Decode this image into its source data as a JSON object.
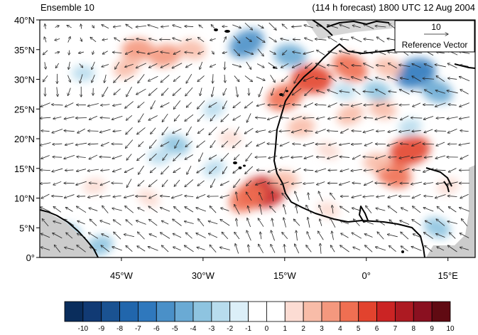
{
  "title_left": "Ensemble 10",
  "title_right": "(114 h forecast) 1800 UTC 12 Aug 2004",
  "reference_vector": {
    "value": "10",
    "label": "Reference Vector"
  },
  "map": {
    "lon_range": [
      -60,
      20
    ],
    "lat_range": [
      0,
      40
    ],
    "lat_tick_labels": [
      {
        "lat": 0,
        "label": "0°"
      },
      {
        "lat": 5,
        "label": "5°N"
      },
      {
        "lat": 10,
        "label": "10°N"
      },
      {
        "lat": 15,
        "label": "15°N"
      },
      {
        "lat": 20,
        "label": "20°N"
      },
      {
        "lat": 25,
        "label": "25°N"
      },
      {
        "lat": 30,
        "label": "30°N"
      },
      {
        "lat": 35,
        "label": "35°N"
      },
      {
        "lat": 40,
        "label": "40°N"
      }
    ],
    "lon_tick_labels": [
      {
        "lon": -45,
        "label": "45°W"
      },
      {
        "lon": -30,
        "label": "30°W"
      },
      {
        "lon": -15,
        "label": "15°W"
      },
      {
        "lon": 0,
        "label": "0°"
      },
      {
        "lon": 15,
        "label": "15°E"
      }
    ],
    "colors": {
      "land_missing": "#cccccc",
      "coastline": "#000000",
      "vector": "#222222"
    }
  },
  "colorbar": {
    "labels": [
      "-10",
      "-9",
      "-8",
      "-7",
      "-6",
      "-5",
      "-4",
      "-3",
      "-2",
      "-1",
      "0",
      "1",
      "2",
      "3",
      "4",
      "5",
      "6",
      "7",
      "8",
      "9",
      "10"
    ],
    "colors": [
      "#0a2d5c",
      "#113a74",
      "#1a5291",
      "#2166ac",
      "#2f78bd",
      "#4a90c8",
      "#6aaad4",
      "#8ec4e0",
      "#b8dced",
      "#dceff8",
      "#ffffff",
      "#ffffff",
      "#fcdcd3",
      "#f8bca8",
      "#f4987e",
      "#ef6f52",
      "#e2432e",
      "#cb2424",
      "#ad1a22",
      "#8a1020",
      "#600a12"
    ]
  },
  "anomaly_field": {
    "units": "",
    "blobs": [
      {
        "lon": -22,
        "lat": 36,
        "value": -5
      },
      {
        "lon": -14,
        "lat": 34,
        "value": -4
      },
      {
        "lon": 9,
        "lat": 31,
        "value": -6
      },
      {
        "lon": 13,
        "lat": 28,
        "value": -4
      },
      {
        "lon": -42,
        "lat": 35,
        "value": 4
      },
      {
        "lon": -44,
        "lat": 32,
        "value": 3
      },
      {
        "lon": -32,
        "lat": 35,
        "value": 3
      },
      {
        "lon": -37,
        "lat": 34,
        "value": 4
      },
      {
        "lon": -3,
        "lat": 32,
        "value": 5
      },
      {
        "lon": -10,
        "lat": 30,
        "value": 6
      },
      {
        "lon": -15,
        "lat": 27,
        "value": 5
      },
      {
        "lon": 4,
        "lat": 32,
        "value": 3
      },
      {
        "lon": -19,
        "lat": 11,
        "value": 7
      },
      {
        "lon": -22,
        "lat": 10,
        "value": 5
      },
      {
        "lon": -15,
        "lat": 13,
        "value": 3
      },
      {
        "lon": 8,
        "lat": 18,
        "value": 6
      },
      {
        "lon": 5,
        "lat": 14,
        "value": 5
      },
      {
        "lon": 2,
        "lat": 16,
        "value": 3
      },
      {
        "lon": -3,
        "lat": 24,
        "value": 3
      },
      {
        "lon": 3,
        "lat": 25,
        "value": 3
      },
      {
        "lon": -12,
        "lat": 22,
        "value": 3
      },
      {
        "lon": -7,
        "lat": 18,
        "value": 2
      },
      {
        "lon": -55,
        "lat": 4,
        "value": -3
      },
      {
        "lon": -49,
        "lat": 2,
        "value": -3
      },
      {
        "lon": -35,
        "lat": 19,
        "value": -3
      },
      {
        "lon": -38,
        "lat": 17,
        "value": -2
      },
      {
        "lon": -28,
        "lat": 25,
        "value": -2
      },
      {
        "lon": -4,
        "lat": 28,
        "value": -2
      },
      {
        "lon": 8,
        "lat": 22,
        "value": -2
      },
      {
        "lon": 13,
        "lat": 5,
        "value": -3
      },
      {
        "lon": -52,
        "lat": 31,
        "value": -2
      },
      {
        "lon": -28,
        "lat": 15,
        "value": -2
      },
      {
        "lon": 2,
        "lat": 28,
        "value": -3
      },
      {
        "lon": -50,
        "lat": 12,
        "value": 2
      },
      {
        "lon": -40,
        "lat": 10,
        "value": 2
      },
      {
        "lon": -25,
        "lat": 20,
        "value": 2
      },
      {
        "lon": 15,
        "lat": 12,
        "value": 2
      },
      {
        "lon": -7,
        "lat": 8,
        "value": 2
      }
    ]
  }
}
